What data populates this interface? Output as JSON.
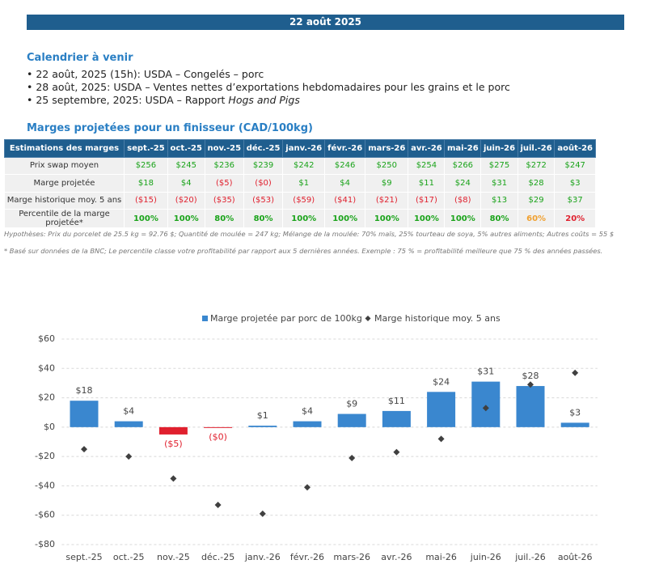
{
  "header": {
    "title": "22 août 2025"
  },
  "calendar": {
    "title": "Calendrier à venir",
    "items": [
      "22 août, 2025 (15h): USDA – Congelés – porc",
      "28 août, 2025: USDA – Ventes nettes d’exportations hebdomadaires pour les grains et le porc",
      {
        "text": "25 septembre, 2025: USDA – Rapport ",
        "italic": "Hogs and Pigs"
      }
    ]
  },
  "table": {
    "title": "Marges projetées pour un finisseur (CAD/100kg)",
    "header": [
      "Estimations des marges",
      "sept.-25",
      "oct.-25",
      "nov.-25",
      "déc.-25",
      "janv.-26",
      "févr.-26",
      "mars-26",
      "avr.-26",
      "mai-26",
      "juin-26",
      "juil.-26",
      "août-26"
    ],
    "rows": [
      [
        "Prix swap moyen",
        "$256",
        "$245",
        "$236",
        "$239",
        "$242",
        "$246",
        "$250",
        "$254",
        "$266",
        "$275",
        "$272",
        "$247"
      ],
      [
        "Marge projetée",
        "$18",
        "$4",
        "($5)",
        "($0)",
        "$1",
        "$4",
        "$9",
        "$11",
        "$24",
        "$31",
        "$28",
        "$3"
      ],
      [
        "Marge historique moy. 5 ans",
        "($15)",
        "($20)",
        "($35)",
        "($53)",
        "($59)",
        "($41)",
        "($21)",
        "($17)",
        "($8)",
        "$13",
        "$29",
        "$37"
      ],
      [
        "Percentile de la marge projetée*",
        "100%",
        "100%",
        "80%",
        "80%",
        "100%",
        "100%",
        "100%",
        "100%",
        "100%",
        "80%",
        "60%",
        "20%"
      ]
    ],
    "percentile_colors": [
      "#1aa31a",
      "#1aa31a",
      "#1aa31a",
      "#1aa31a",
      "#1aa31a",
      "#1aa31a",
      "#1aa31a",
      "#1aa31a",
      "#1aa31a",
      "#1aa31a",
      "#f0a030",
      "#e0202e"
    ],
    "positive_color": "#1aa31a",
    "negative_color": "#e0202e"
  },
  "notes": [
    "Hypothèses: Prix du porcelet de 25.5 kg = 92.76 $; Quantité de moulée = 247 kg; Mélange de la moulée: 70% maïs, 25% tourteau de soya, 5% autres aliments; Autres coûts = 55 $",
    "* Basé sur données de la BNC; Le percentile classe votre profitabilité par rapport aux 5 dernières années. Exemple : 75 % = profitabilité meilleure que 75 % des années passées."
  ],
  "chart_data": {
    "type": "bar",
    "categories": [
      "sept.-25",
      "oct.-25",
      "nov.-25",
      "déc.-25",
      "janv.-26",
      "févr.-26",
      "mars-26",
      "avr.-26",
      "mai-26",
      "juin-26",
      "juil.-26",
      "août-26"
    ],
    "series": [
      {
        "name": "Marge projetée par porc de 100kg",
        "color": "#3a87cf",
        "negative_color": "#e0202e",
        "values": [
          18,
          4,
          -5,
          -0.4,
          1,
          4,
          9,
          11,
          24,
          31,
          28,
          3
        ],
        "value_labels": [
          "$18",
          "$4",
          "($5)",
          "($0)",
          "$1",
          "$4",
          "$9",
          "$11",
          "$24",
          "$31",
          "$28",
          "$3"
        ]
      },
      {
        "name": "Marge historique moy. 5 ans",
        "color": "#404040",
        "marker": "diamond",
        "values": [
          -15,
          -20,
          -35,
          -53,
          -59,
          -41,
          -21,
          -17,
          -8,
          13,
          29,
          37
        ]
      }
    ],
    "ylim": [
      -80,
      60
    ],
    "yticks": [
      {
        "value": -80,
        "label": "-$80"
      },
      {
        "value": -60,
        "label": "-$60"
      },
      {
        "value": -40,
        "label": "-$40"
      },
      {
        "value": -20,
        "label": "-$20"
      },
      {
        "value": 0,
        "label": "$0"
      },
      {
        "value": 20,
        "label": "$20"
      },
      {
        "value": 40,
        "label": "$40"
      },
      {
        "value": 60,
        "label": "$60"
      }
    ],
    "grid": true,
    "legend": "top"
  }
}
